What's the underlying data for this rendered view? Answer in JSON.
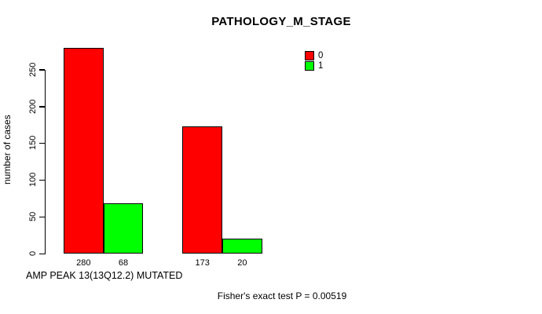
{
  "chart_data": {
    "type": "bar",
    "title": "PATHOLOGY_M_STAGE",
    "xlabel": "AMP PEAK 13(13Q12.2) MUTATED",
    "ylabel": "number of cases",
    "categories": [
      "",
      ""
    ],
    "series": [
      {
        "name": "0",
        "color": "#FF0000",
        "values": [
          280,
          173
        ]
      },
      {
        "name": "1",
        "color": "#00FF00",
        "values": [
          68,
          20
        ]
      }
    ],
    "bar_value_labels": [
      "280",
      "68",
      "173",
      "20"
    ],
    "yticks": [
      0,
      50,
      100,
      150,
      200,
      250
    ],
    "ylim": [
      0,
      280
    ],
    "grid": false,
    "legend_position": "top-right",
    "annotation": "Fisher's exact test P = 0.00519"
  }
}
